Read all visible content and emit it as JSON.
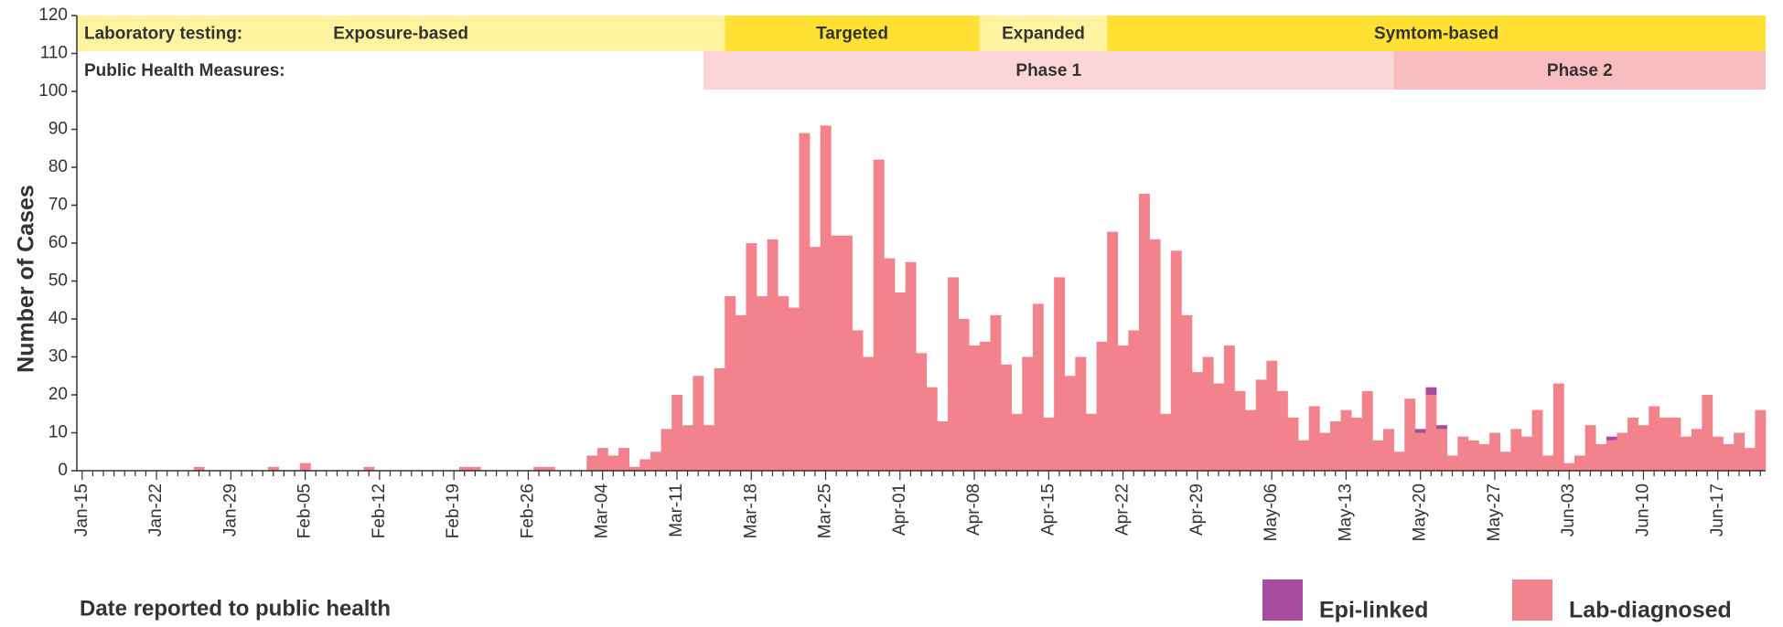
{
  "chart_data": {
    "type": "stacked_bar",
    "y_label": "Number of Cases",
    "x_label": "Date reported to public health",
    "ylim": [
      0,
      120
    ],
    "yticks": [
      0,
      10,
      20,
      30,
      40,
      50,
      60,
      70,
      80,
      90,
      100,
      110,
      120
    ],
    "categories": [
      "Jan-15",
      null,
      null,
      null,
      null,
      null,
      null,
      "Jan-22",
      null,
      null,
      null,
      null,
      null,
      null,
      "Jan-29",
      null,
      null,
      null,
      null,
      null,
      null,
      "Feb-05",
      null,
      null,
      null,
      null,
      null,
      null,
      "Feb-12",
      null,
      null,
      null,
      null,
      null,
      null,
      "Feb-19",
      null,
      null,
      null,
      null,
      null,
      null,
      "Feb-26",
      null,
      null,
      null,
      null,
      null,
      null,
      "Mar-04",
      null,
      null,
      null,
      null,
      null,
      null,
      "Mar-11",
      null,
      null,
      null,
      null,
      null,
      null,
      "Mar-18",
      null,
      null,
      null,
      null,
      null,
      null,
      "Mar-25",
      null,
      null,
      null,
      null,
      null,
      null,
      "Apr-01",
      null,
      null,
      null,
      null,
      null,
      null,
      "Apr-08",
      null,
      null,
      null,
      null,
      null,
      null,
      "Apr-15",
      null,
      null,
      null,
      null,
      null,
      null,
      "Apr-22",
      null,
      null,
      null,
      null,
      null,
      null,
      "Apr-29",
      null,
      null,
      null,
      null,
      null,
      null,
      "May-06",
      null,
      null,
      null,
      null,
      null,
      null,
      "May-13",
      null,
      null,
      null,
      null,
      null,
      null,
      "May-20",
      null,
      null,
      null,
      null,
      null,
      null,
      "May-27",
      null,
      null,
      null,
      null,
      null,
      null,
      "Jun-03",
      null,
      null,
      null,
      null,
      null,
      null,
      "Jun-10",
      null,
      null,
      null,
      null,
      null,
      null,
      "Jun-17",
      null,
      null,
      null,
      null
    ],
    "series": [
      {
        "name": "Epi-linked",
        "color": "#a84ca0",
        "values": [
          0,
          0,
          0,
          0,
          0,
          0,
          0,
          0,
          0,
          0,
          0,
          0,
          0,
          0,
          0,
          0,
          0,
          0,
          0,
          0,
          0,
          0,
          0,
          0,
          0,
          0,
          0,
          0,
          0,
          0,
          0,
          0,
          0,
          0,
          0,
          0,
          0,
          0,
          0,
          0,
          0,
          0,
          0,
          0,
          0,
          0,
          0,
          0,
          0,
          0,
          0,
          0,
          0,
          0,
          0,
          0,
          0,
          0,
          0,
          0,
          0,
          0,
          0,
          0,
          0,
          0,
          0,
          0,
          0,
          0,
          0,
          0,
          0,
          0,
          0,
          0,
          0,
          0,
          0,
          0,
          0,
          0,
          0,
          0,
          0,
          0,
          0,
          0,
          0,
          0,
          0,
          0,
          0,
          0,
          0,
          0,
          0,
          0,
          0,
          0,
          0,
          0,
          0,
          0,
          0,
          0,
          0,
          0,
          0,
          0,
          0,
          0,
          0,
          0,
          0,
          0,
          0,
          0,
          0,
          0,
          0,
          0,
          0,
          0,
          0,
          0,
          1,
          2,
          1,
          0,
          0,
          0,
          0,
          0,
          0,
          0,
          0,
          0,
          0,
          0,
          0,
          0,
          0,
          0,
          1,
          0,
          0,
          0,
          0,
          0,
          0,
          0,
          0,
          0,
          0,
          0,
          0,
          0,
          0
        ]
      },
      {
        "name": "Lab-diagnosed",
        "color": "#f2838c",
        "values": [
          0,
          0,
          0,
          0,
          0,
          0,
          0,
          0,
          0,
          0,
          0,
          1,
          0,
          0,
          0,
          0,
          0,
          0,
          1,
          0,
          0,
          2,
          0,
          0,
          0,
          0,
          0,
          1,
          0,
          0,
          0,
          0,
          0,
          0,
          0,
          0,
          1,
          1,
          0,
          0,
          0,
          0,
          0,
          1,
          1,
          0,
          0,
          0,
          4,
          6,
          4,
          6,
          1,
          3,
          5,
          11,
          20,
          12,
          25,
          12,
          27,
          46,
          41,
          60,
          46,
          61,
          46,
          43,
          89,
          59,
          91,
          62,
          62,
          37,
          30,
          82,
          56,
          47,
          55,
          31,
          22,
          13,
          51,
          40,
          33,
          34,
          41,
          28,
          15,
          30,
          44,
          14,
          51,
          25,
          30,
          15,
          34,
          63,
          33,
          37,
          73,
          61,
          15,
          58,
          41,
          26,
          30,
          23,
          33,
          21,
          16,
          24,
          29,
          21,
          14,
          8,
          17,
          10,
          13,
          16,
          14,
          21,
          8,
          11,
          5,
          19,
          10,
          20,
          11,
          4,
          9,
          8,
          7,
          10,
          5,
          11,
          9,
          16,
          4,
          23,
          2,
          4,
          12,
          7,
          8,
          10,
          14,
          12,
          17,
          14,
          14,
          9,
          11,
          20,
          9,
          7,
          10,
          6,
          16
        ]
      }
    ],
    "bands": [
      {
        "label": "Laboratory testing:",
        "segments": [
          {
            "label": "Exposure-based",
            "start": 0,
            "end": 60,
            "color": "#fff3a0"
          },
          {
            "label": "Targeted",
            "start": 61,
            "end": 84,
            "color": "#ffe033"
          },
          {
            "label": "Expanded",
            "start": 85,
            "end": 96,
            "color": "#fff3a0"
          },
          {
            "label": "Symtom-based",
            "start": 97,
            "end": 158,
            "color": "#ffe033"
          }
        ]
      },
      {
        "label": "Public Health Measures:",
        "segments": [
          {
            "label": "Phase 1",
            "start": 59,
            "end": 123,
            "color": "#fcd5d8"
          },
          {
            "label": "Phase 2",
            "start": 124,
            "end": 158,
            "color": "#f8bcc1"
          }
        ]
      }
    ]
  }
}
